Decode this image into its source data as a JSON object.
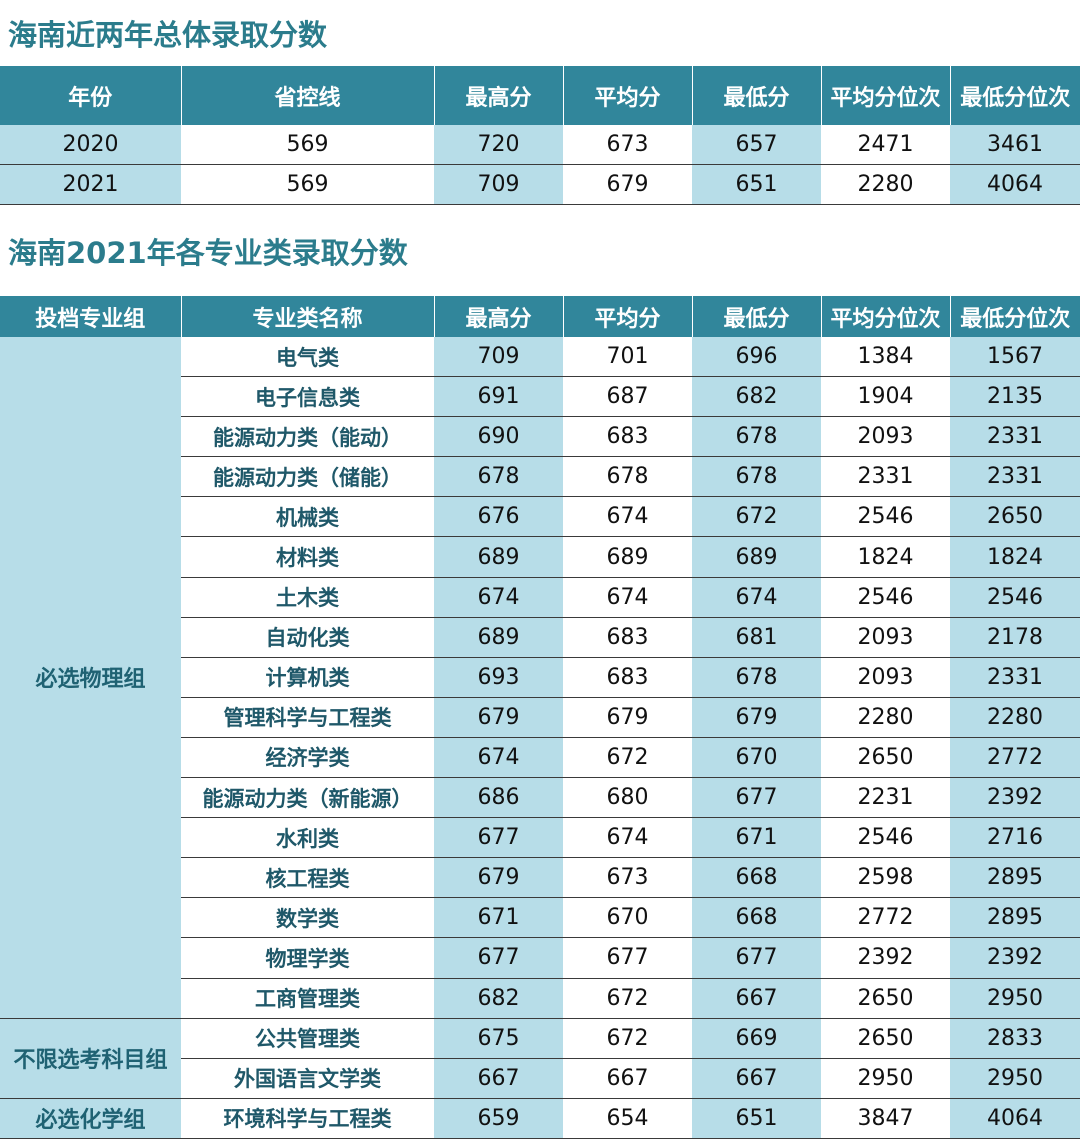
{
  "section1": {
    "title": "海南近两年总体录取分数",
    "headers": [
      "年份",
      "省控线",
      "最高分",
      "平均分",
      "最低分",
      "平均分位次",
      "最低分位次"
    ],
    "rows": [
      [
        2020,
        569,
        720,
        673,
        657,
        2471,
        3461
      ],
      [
        2021,
        569,
        709,
        679,
        651,
        2280,
        4064
      ]
    ]
  },
  "section2": {
    "title": "海南2021年各专业类录取分数",
    "headers": [
      "投档专业组",
      "专业类名称",
      "最高分",
      "平均分",
      "最低分",
      "平均分位次",
      "最低分位次"
    ],
    "groups": [
      {
        "name": "必选物理组",
        "rows": [
          [
            "电气类",
            709,
            701,
            696,
            1384,
            1567
          ],
          [
            "电子信息类",
            691,
            687,
            682,
            1904,
            2135
          ],
          [
            "能源动力类（能动）",
            690,
            683,
            678,
            2093,
            2331
          ],
          [
            "能源动力类（储能）",
            678,
            678,
            678,
            2331,
            2331
          ],
          [
            "机械类",
            676,
            674,
            672,
            2546,
            2650
          ],
          [
            "材料类",
            689,
            689,
            689,
            1824,
            1824
          ],
          [
            "土木类",
            674,
            674,
            674,
            2546,
            2546
          ],
          [
            "自动化类",
            689,
            683,
            681,
            2093,
            2178
          ],
          [
            "计算机类",
            693,
            683,
            678,
            2093,
            2331
          ],
          [
            "管理科学与工程类",
            679,
            679,
            679,
            2280,
            2280
          ],
          [
            "经济学类",
            674,
            672,
            670,
            2650,
            2772
          ],
          [
            "能源动力类（新能源）",
            686,
            680,
            677,
            2231,
            2392
          ],
          [
            "水利类",
            677,
            674,
            671,
            2546,
            2716
          ],
          [
            "核工程类",
            679,
            673,
            668,
            2598,
            2895
          ],
          [
            "数学类",
            671,
            670,
            668,
            2772,
            2895
          ],
          [
            "物理学类",
            677,
            677,
            677,
            2392,
            2392
          ],
          [
            "工商管理类",
            682,
            672,
            667,
            2650,
            2950
          ]
        ]
      },
      {
        "name": "不限选考科目组",
        "rows": [
          [
            "公共管理类",
            675,
            672,
            669,
            2650,
            2833
          ],
          [
            "外国语言文学类",
            667,
            667,
            667,
            2950,
            2950
          ]
        ]
      },
      {
        "name": "必选化学组",
        "rows": [
          [
            "环境科学与工程类",
            659,
            654,
            651,
            3847,
            4064
          ]
        ]
      }
    ]
  }
}
